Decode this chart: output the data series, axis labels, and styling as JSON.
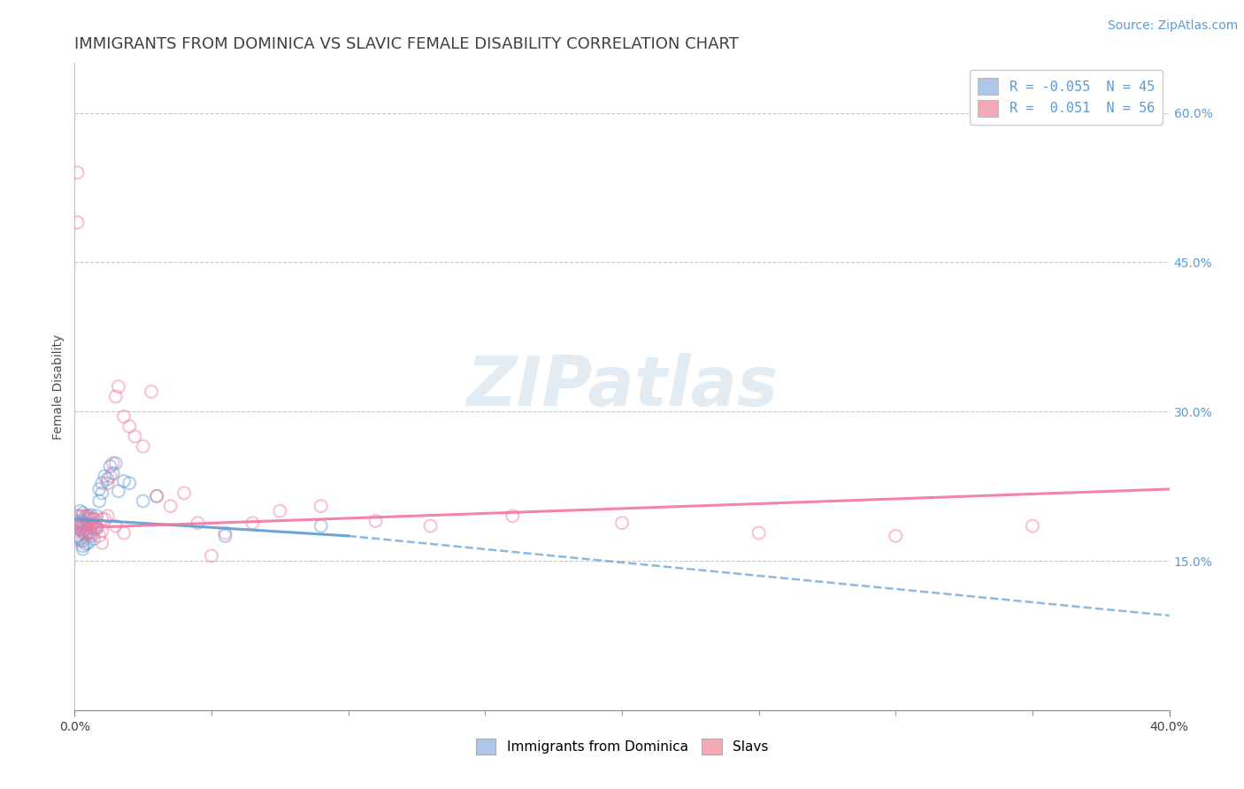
{
  "title": "IMMIGRANTS FROM DOMINICA VS SLAVIC FEMALE DISABILITY CORRELATION CHART",
  "source": "Source: ZipAtlas.com",
  "ylabel": "Female Disability",
  "xlim": [
    0.0,
    0.4
  ],
  "ylim": [
    0.0,
    0.65
  ],
  "xtick_minor_vals": [
    0.05,
    0.1,
    0.15,
    0.2,
    0.25,
    0.3,
    0.35
  ],
  "xtick_edge_labels": [
    "0.0%",
    "40.0%"
  ],
  "xtick_edge_vals": [
    0.0,
    0.4
  ],
  "ytick_labels_right": [
    "15.0%",
    "30.0%",
    "45.0%",
    "60.0%"
  ],
  "ytick_vals_right": [
    0.15,
    0.3,
    0.45,
    0.6
  ],
  "legend_entries": [
    {
      "label": "R = -0.055  N = 45",
      "color": "#aec6e8"
    },
    {
      "label": "R =  0.051  N = 56",
      "color": "#f4a9b8"
    }
  ],
  "legend_label_bottom": [
    "Immigrants from Dominica",
    "Slavs"
  ],
  "watermark": "ZIPatlas",
  "blue_scatter": {
    "x": [
      0.001,
      0.001,
      0.001,
      0.002,
      0.002,
      0.002,
      0.002,
      0.003,
      0.003,
      0.003,
      0.003,
      0.003,
      0.004,
      0.004,
      0.004,
      0.004,
      0.005,
      0.005,
      0.005,
      0.005,
      0.006,
      0.006,
      0.006,
      0.007,
      0.007,
      0.007,
      0.008,
      0.008,
      0.009,
      0.009,
      0.01,
      0.01,
      0.011,
      0.012,
      0.013,
      0.014,
      0.015,
      0.016,
      0.018,
      0.02,
      0.025,
      0.03,
      0.055,
      0.09,
      0.003
    ],
    "y": [
      0.195,
      0.185,
      0.175,
      0.2,
      0.19,
      0.182,
      0.172,
      0.198,
      0.188,
      0.18,
      0.17,
      0.162,
      0.195,
      0.185,
      0.177,
      0.167,
      0.195,
      0.187,
      0.178,
      0.168,
      0.196,
      0.186,
      0.175,
      0.192,
      0.182,
      0.172,
      0.195,
      0.183,
      0.222,
      0.21,
      0.228,
      0.218,
      0.235,
      0.232,
      0.245,
      0.238,
      0.248,
      0.22,
      0.23,
      0.228,
      0.21,
      0.215,
      0.175,
      0.185,
      0.165
    ]
  },
  "pink_scatter": {
    "x": [
      0.001,
      0.001,
      0.002,
      0.002,
      0.003,
      0.003,
      0.003,
      0.004,
      0.004,
      0.005,
      0.005,
      0.006,
      0.006,
      0.007,
      0.008,
      0.009,
      0.01,
      0.01,
      0.011,
      0.012,
      0.013,
      0.014,
      0.015,
      0.016,
      0.018,
      0.02,
      0.022,
      0.025,
      0.028,
      0.03,
      0.035,
      0.04,
      0.045,
      0.05,
      0.055,
      0.065,
      0.075,
      0.09,
      0.11,
      0.13,
      0.16,
      0.2,
      0.25,
      0.3,
      0.35,
      0.002,
      0.003,
      0.004,
      0.005,
      0.006,
      0.007,
      0.008,
      0.01,
      0.012,
      0.015,
      0.018
    ],
    "y": [
      0.54,
      0.49,
      0.195,
      0.185,
      0.195,
      0.185,
      0.178,
      0.193,
      0.182,
      0.195,
      0.183,
      0.192,
      0.178,
      0.192,
      0.185,
      0.175,
      0.192,
      0.18,
      0.192,
      0.228,
      0.235,
      0.248,
      0.315,
      0.325,
      0.295,
      0.285,
      0.275,
      0.265,
      0.32,
      0.215,
      0.205,
      0.218,
      0.188,
      0.155,
      0.178,
      0.188,
      0.2,
      0.205,
      0.19,
      0.185,
      0.195,
      0.188,
      0.178,
      0.175,
      0.185,
      0.17,
      0.182,
      0.175,
      0.192,
      0.178,
      0.188,
      0.182,
      0.168,
      0.195,
      0.185,
      0.178
    ]
  },
  "blue_line_solid": {
    "x0": 0.0,
    "x1": 0.1,
    "y0": 0.192,
    "y1": 0.175
  },
  "blue_line_dashed": {
    "x0": 0.1,
    "x1": 0.4,
    "y0": 0.175,
    "y1": 0.095
  },
  "pink_line": {
    "x0": 0.0,
    "x1": 0.4,
    "y0": 0.183,
    "y1": 0.222
  },
  "scatter_size": 100,
  "scatter_alpha": 0.45,
  "blue_color": "#5b9bd5",
  "pink_color": "#f4779a",
  "blue_line_color": "#5b9bd5",
  "pink_line_color": "#f4779a",
  "grid_color": "#c8c8c8",
  "background_color": "#ffffff",
  "title_color": "#404040",
  "title_fontsize": 13,
  "axis_label_fontsize": 10,
  "tick_fontsize": 10,
  "source_fontsize": 10,
  "source_color": "#5b9bd5"
}
